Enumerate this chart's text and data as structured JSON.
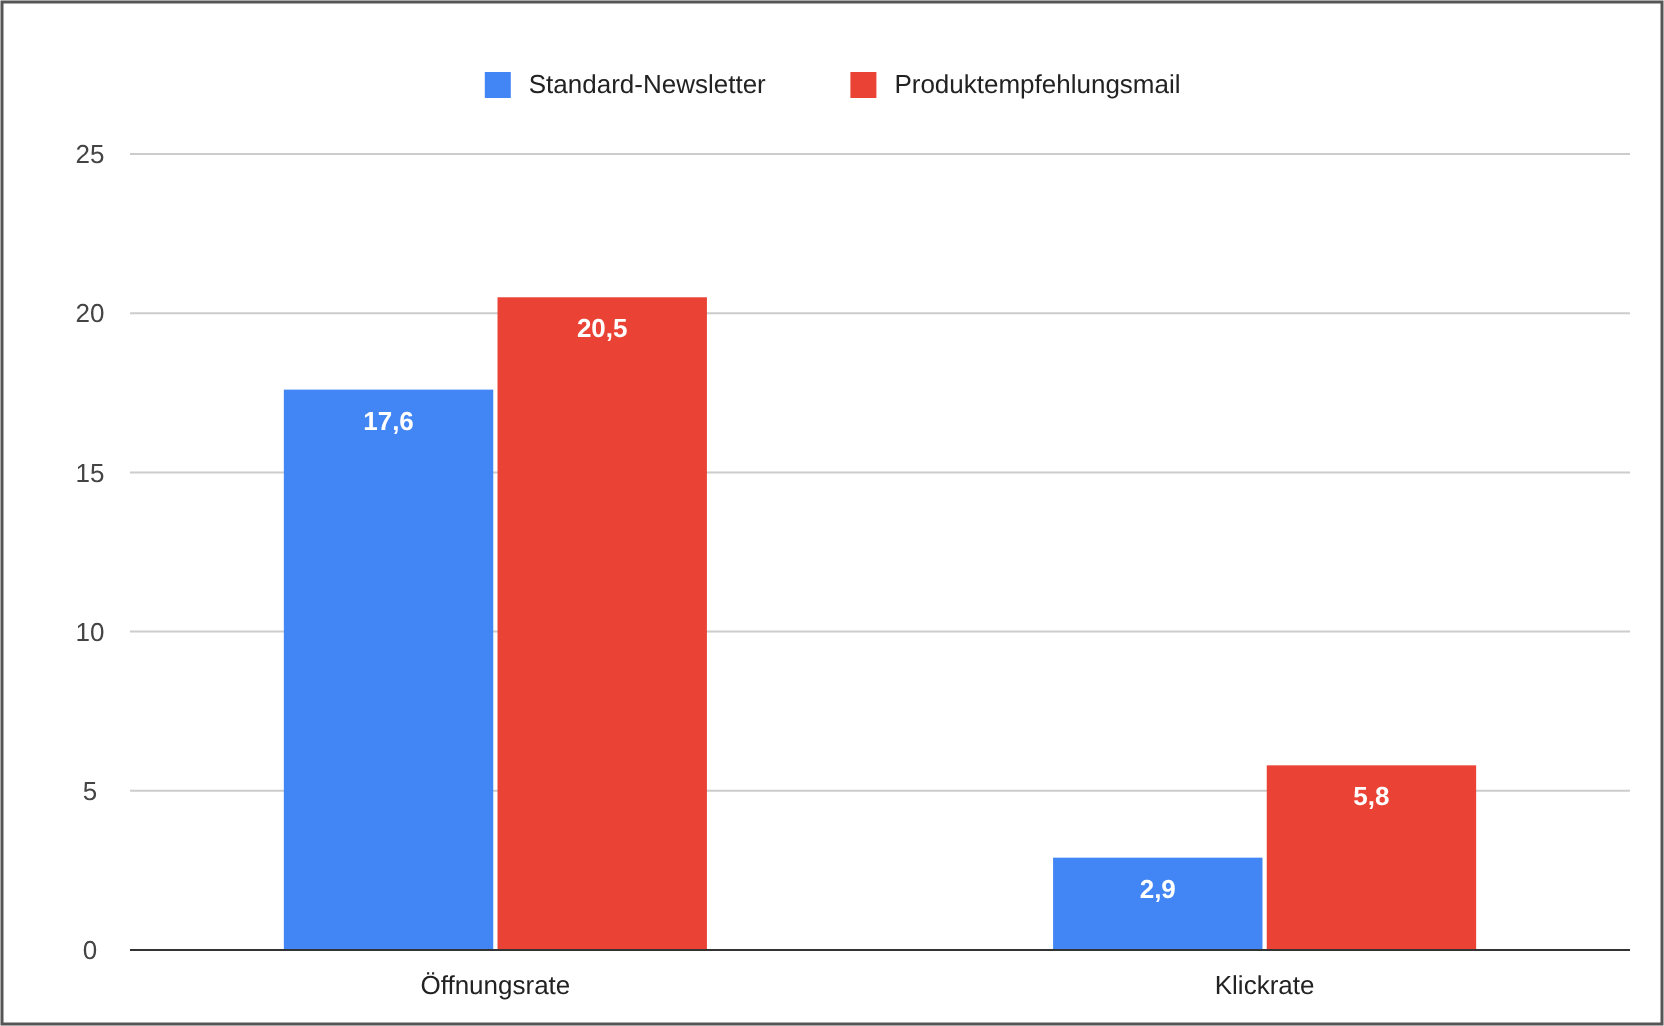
{
  "chart_data": {
    "type": "bar",
    "categories": [
      "Öffnungsrate",
      "Klickrate"
    ],
    "series": [
      {
        "name": "Standard-Newsletter",
        "color": "#4285f4",
        "values": [
          17.6,
          2.9
        ],
        "value_labels": [
          "17,6",
          "2,9"
        ]
      },
      {
        "name": "Produktempfehlungsmail",
        "color": "#ea4335",
        "values": [
          20.5,
          5.8
        ],
        "value_labels": [
          "20,5",
          "5,8"
        ]
      }
    ],
    "ylim": [
      0,
      25
    ],
    "yticks": [
      0,
      5,
      10,
      15,
      20,
      25
    ],
    "grid": "y",
    "legend": "top"
  }
}
